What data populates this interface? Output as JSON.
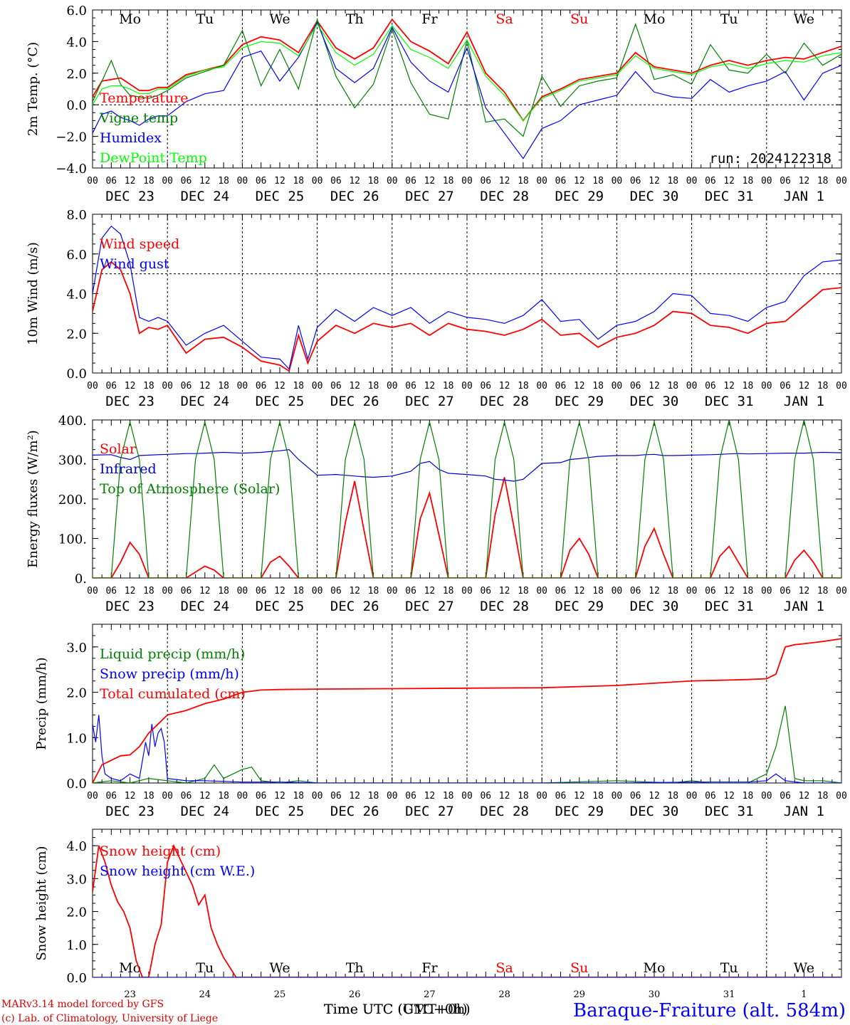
{
  "colors": {
    "red": "#ff0000",
    "darkred": "#e00000",
    "blue": "#0000ff",
    "darkblue": "#0000c8",
    "green": "#008000",
    "lime": "#00ff00",
    "black": "#000000",
    "sat": "#ff0000"
  },
  "x_ticks": [
    "00",
    "06",
    "12",
    "18",
    "00",
    "06",
    "12",
    "18",
    "00",
    "06",
    "12",
    "18",
    "00",
    "06",
    "12",
    "18",
    "00",
    "06",
    "12",
    "18",
    "00",
    "06",
    "12",
    "18",
    "00",
    "06",
    "12",
    "18",
    "00",
    "06",
    "12",
    "18",
    "00",
    "06",
    "12",
    "18",
    "00",
    "06",
    "12",
    "18",
    "00"
  ],
  "date_labels": [
    "DEC 23",
    "DEC 24",
    "DEC 25",
    "DEC 26",
    "DEC 27",
    "DEC 28",
    "DEC 29",
    "DEC 30",
    "DEC 31",
    "JAN  1"
  ],
  "weekdays": [
    "Mo",
    "Tu",
    "We",
    "Th",
    "Fr",
    "Sa",
    "Su",
    "Mo",
    "Tu",
    "We"
  ],
  "weekday_colors": [
    "#000",
    "#000",
    "#000",
    "#000",
    "#000",
    "#ff0000",
    "#ff0000",
    "#000",
    "#000",
    "#000"
  ],
  "day_numbers": [
    "23",
    "24",
    "25",
    "26",
    "27",
    "28",
    "29",
    "30",
    "31",
    "1"
  ],
  "run_label": "run: 2024122318",
  "footer": {
    "credit1": "MARv3.14 model forced by GFS",
    "credit2": "(c) Lab. of Climatology, University of Liege",
    "xlabel_a": "Time UTC (UTC+0h)",
    "xlabel_b": "Time UTC (GMT+0h)",
    "station": "Baraque-Fraiture (alt. 584m)"
  },
  "chart_data": [
    {
      "type": "line",
      "ylabel": "2m Temp. (°C)",
      "ylim": [
        -4,
        6
      ],
      "yticks": [
        "6.0",
        "4.0",
        "2.0",
        "0.0",
        "−2.0",
        "−4.0"
      ],
      "ref_line": 0,
      "x_hours": [
        0,
        3,
        6,
        9,
        12,
        15,
        18,
        21,
        24,
        30,
        36,
        42,
        48,
        54,
        60,
        66,
        72,
        78,
        84,
        90,
        96,
        102,
        108,
        114,
        120,
        126,
        132,
        138,
        144,
        150,
        156,
        162,
        168,
        174,
        180,
        186,
        192,
        198,
        204,
        210,
        216,
        222,
        228,
        234,
        240
      ],
      "series": [
        {
          "name": "Temperature",
          "color": "#ff0000",
          "values": [
            0.5,
            1.5,
            1.6,
            1.7,
            1.3,
            0.9,
            0.9,
            1.1,
            1.1,
            1.9,
            2.2,
            2.5,
            3.8,
            4.3,
            4.1,
            3.3,
            5.3,
            3.6,
            2.9,
            3.6,
            5.4,
            4.0,
            3.4,
            2.6,
            4.6,
            2.0,
            0.8,
            -1.0,
            0.5,
            1.0,
            1.6,
            1.8,
            2.0,
            3.3,
            2.4,
            2.2,
            2.0,
            2.5,
            2.8,
            2.5,
            2.8,
            3.0,
            2.9,
            3.3,
            3.7
          ]
        },
        {
          "name": "Vigne temp",
          "color": "#008000",
          "values": [
            0.2,
            1.5,
            2.8,
            1.3,
            0.6,
            0.5,
            0.4,
            0.6,
            0.9,
            1.7,
            2.1,
            2.5,
            4.7,
            1.2,
            3.5,
            1.0,
            5.4,
            1.8,
            -0.2,
            1.3,
            4.8,
            1.4,
            -0.6,
            -0.9,
            4.1,
            -1.1,
            -0.9,
            -2.0,
            1.8,
            -0.1,
            1.2,
            1.5,
            1.7,
            5.1,
            1.6,
            1.9,
            1.3,
            3.8,
            2.2,
            2.0,
            3.2,
            2.0,
            3.9,
            2.5,
            3.2
          ]
        },
        {
          "name": "Humidex",
          "color": "#0000ff",
          "values": [
            -1.8,
            -0.6,
            -0.4,
            -0.8,
            -1.0,
            -1.3,
            -0.9,
            -0.7,
            -0.7,
            0.2,
            0.7,
            0.9,
            3.0,
            3.4,
            1.5,
            3.0,
            5.2,
            2.3,
            1.4,
            2.3,
            4.9,
            2.7,
            1.5,
            0.8,
            3.6,
            -0.2,
            -1.8,
            -3.4,
            -1.5,
            -1.0,
            0.0,
            0.3,
            0.6,
            2.1,
            0.8,
            0.5,
            0.4,
            1.6,
            0.8,
            1.2,
            1.5,
            2.1,
            0.3,
            2.0,
            2.5
          ]
        },
        {
          "name": "DewPoint Temp",
          "color": "#00ff00",
          "values": [
            0.0,
            1.0,
            1.2,
            1.2,
            1.0,
            0.7,
            0.7,
            1.0,
            1.0,
            1.8,
            2.2,
            2.4,
            3.6,
            4.0,
            3.9,
            3.1,
            5.1,
            3.3,
            2.5,
            3.2,
            5.0,
            3.5,
            3.0,
            2.3,
            4.1,
            1.8,
            0.6,
            -1.0,
            0.4,
            0.9,
            1.5,
            1.7,
            1.9,
            3.1,
            2.3,
            2.1,
            1.9,
            2.4,
            2.6,
            2.3,
            2.6,
            2.8,
            2.7,
            3.1,
            3.3
          ]
        }
      ]
    },
    {
      "type": "line",
      "ylabel": "10m Wind (m/s)",
      "ylim": [
        0,
        8
      ],
      "yticks": [
        "8.0",
        "6.0",
        "4.0",
        "2.0",
        "0.0"
      ],
      "ref_line": 5,
      "x_hours": [
        0,
        3,
        6,
        9,
        12,
        15,
        18,
        21,
        24,
        30,
        36,
        42,
        48,
        54,
        60,
        63,
        66,
        69,
        72,
        78,
        84,
        90,
        96,
        102,
        108,
        114,
        120,
        126,
        132,
        138,
        144,
        150,
        156,
        162,
        168,
        174,
        180,
        186,
        192,
        198,
        204,
        210,
        216,
        222,
        228,
        234,
        240
      ],
      "series": [
        {
          "name": "Wind speed",
          "color": "#ff0000",
          "values": [
            3.1,
            5.2,
            5.6,
            5.2,
            4.0,
            2.0,
            2.3,
            2.2,
            2.4,
            1.0,
            1.7,
            1.8,
            1.3,
            0.6,
            0.4,
            0.1,
            1.9,
            0.5,
            1.6,
            2.4,
            2.0,
            2.5,
            2.3,
            2.5,
            1.9,
            2.5,
            2.2,
            2.1,
            1.9,
            2.2,
            2.7,
            1.9,
            2.0,
            1.3,
            1.8,
            2.0,
            2.4,
            3.1,
            3.0,
            2.4,
            2.3,
            2.0,
            2.5,
            2.6,
            3.4,
            4.2,
            4.3
          ]
        },
        {
          "name": "Wind gust",
          "color": "#0000ff",
          "values": [
            4.0,
            6.8,
            7.4,
            7.0,
            5.5,
            2.8,
            2.6,
            2.8,
            2.6,
            1.4,
            2.0,
            2.4,
            1.6,
            0.8,
            0.7,
            0.2,
            2.4,
            0.7,
            2.3,
            3.2,
            2.6,
            3.3,
            2.9,
            3.3,
            2.5,
            3.1,
            2.8,
            2.7,
            2.5,
            2.9,
            3.7,
            2.6,
            2.7,
            1.7,
            2.4,
            2.6,
            3.1,
            4.0,
            3.9,
            3.0,
            2.9,
            2.6,
            3.3,
            3.6,
            4.9,
            5.6,
            5.7
          ]
        }
      ]
    },
    {
      "type": "line",
      "ylabel": "Energy fluxes (W/m²)",
      "ylim": [
        0,
        400
      ],
      "yticks": [
        "400.",
        "300.",
        "200.",
        "100.",
        "0."
      ],
      "x_hours": [
        0,
        6,
        9,
        12,
        15,
        18,
        24,
        30,
        33,
        36,
        39,
        42,
        48,
        54,
        57,
        60,
        63,
        66,
        72,
        78,
        81,
        84,
        87,
        90,
        96,
        102,
        105,
        108,
        111,
        114,
        120,
        126,
        129,
        132,
        135,
        138,
        144,
        150,
        153,
        156,
        159,
        162,
        168,
        174,
        177,
        180,
        183,
        186,
        192,
        198,
        201,
        204,
        207,
        210,
        216,
        222,
        225,
        228,
        231,
        234,
        240
      ],
      "series": [
        {
          "name": "Solar",
          "color": "#ff0000",
          "values": [
            0,
            0,
            40,
            90,
            60,
            0,
            0,
            0,
            15,
            30,
            20,
            0,
            0,
            0,
            40,
            55,
            30,
            0,
            0,
            0,
            140,
            245,
            120,
            0,
            0,
            0,
            150,
            215,
            110,
            0,
            0,
            0,
            160,
            255,
            130,
            0,
            0,
            0,
            70,
            100,
            60,
            0,
            0,
            0,
            80,
            125,
            60,
            0,
            0,
            0,
            55,
            80,
            40,
            0,
            0,
            0,
            45,
            70,
            40,
            0,
            0
          ]
        },
        {
          "name": "Infrared",
          "color": "#0000c8",
          "values": [
            311,
            312,
            305,
            300,
            310,
            311,
            313,
            315,
            315,
            316,
            317,
            318,
            316,
            318,
            320,
            322,
            325,
            300,
            260,
            262,
            260,
            258,
            256,
            255,
            258,
            270,
            290,
            295,
            275,
            265,
            262,
            258,
            250,
            248,
            245,
            250,
            290,
            292,
            300,
            302,
            305,
            308,
            310,
            310,
            312,
            313,
            310,
            310,
            311,
            312,
            313,
            314,
            315,
            314,
            315,
            316,
            316,
            316,
            317,
            318,
            317
          ]
        },
        {
          "name": "Top of Atmosphere (Solar)",
          "color": "#008000",
          "values": [
            0,
            0,
            300,
            395,
            300,
            0,
            0,
            0,
            300,
            395,
            300,
            0,
            0,
            0,
            300,
            395,
            300,
            0,
            0,
            0,
            300,
            395,
            300,
            0,
            0,
            0,
            300,
            395,
            300,
            0,
            0,
            0,
            300,
            395,
            300,
            0,
            0,
            0,
            300,
            395,
            300,
            0,
            0,
            0,
            300,
            395,
            300,
            0,
            0,
            0,
            300,
            400,
            300,
            0,
            0,
            0,
            300,
            400,
            300,
            0,
            0
          ]
        }
      ]
    },
    {
      "type": "line",
      "ylabel": "Precip (mm/h)",
      "ylim": [
        0,
        3.5
      ],
      "yticks": [
        "3.0",
        "2.0",
        "1.0",
        "0.0"
      ],
      "series": [
        {
          "name": "Liquid precip (mm/h)",
          "color": "#008000",
          "x": [
            0,
            6,
            12,
            18,
            24,
            30,
            36,
            39,
            42,
            48,
            51,
            54,
            60,
            66,
            72,
            96,
            120,
            144,
            168,
            186,
            192,
            198,
            204,
            210,
            216,
            219,
            222,
            225,
            228,
            234,
            240
          ],
          "values": [
            0,
            0.05,
            0,
            0.1,
            0.05,
            0,
            0.1,
            0.4,
            0.1,
            0.3,
            0.35,
            0.05,
            0,
            0.05,
            0,
            0,
            0,
            0,
            0.05,
            0,
            0.05,
            0,
            0,
            0,
            0.2,
            0.8,
            1.7,
            0.1,
            0.05,
            0.05,
            0
          ]
        },
        {
          "name": "Snow precip (mm/h)",
          "color": "#0000ff",
          "x": [
            0,
            1,
            2,
            3,
            4,
            6,
            9,
            12,
            15,
            17,
            18,
            19,
            20,
            21,
            22,
            23,
            24,
            30,
            36,
            48,
            60,
            72,
            96,
            120,
            144,
            168,
            192,
            210,
            216,
            219,
            222,
            228,
            240
          ],
          "values": [
            1.3,
            0.9,
            1.5,
            0.6,
            0.2,
            0.1,
            0.05,
            0.2,
            0.1,
            0.9,
            0.6,
            1.3,
            0.8,
            1.1,
            1.2,
            0.9,
            0.1,
            0.05,
            0.05,
            0.02,
            0.02,
            0,
            0,
            0,
            0,
            0,
            0.02,
            0.02,
            0.05,
            0.2,
            0.05,
            0,
            0
          ]
        },
        {
          "name": "Total cumulated (cm)",
          "color": "#ff0000",
          "x": [
            0,
            3,
            6,
            9,
            12,
            15,
            18,
            21,
            24,
            30,
            36,
            42,
            48,
            54,
            60,
            72,
            96,
            120,
            144,
            168,
            192,
            204,
            210,
            216,
            219,
            222,
            225,
            228,
            234,
            240
          ],
          "values": [
            0,
            0.4,
            0.5,
            0.6,
            0.62,
            0.8,
            1.1,
            1.3,
            1.5,
            1.6,
            1.75,
            1.85,
            2.0,
            2.05,
            2.06,
            2.07,
            2.08,
            2.09,
            2.1,
            2.15,
            2.25,
            2.27,
            2.28,
            2.3,
            2.4,
            3.0,
            3.05,
            3.07,
            3.12,
            3.18
          ]
        }
      ]
    },
    {
      "type": "line",
      "ylabel": "Snow height (cm)",
      "ylim": [
        0,
        4.5
      ],
      "yticks": [
        "4.0",
        "3.0",
        "2.0",
        "1.0",
        "0.0"
      ],
      "series": [
        {
          "name": "Snow height (cm)",
          "color": "#ff0000",
          "x": [
            0,
            2,
            4,
            6,
            8,
            10,
            12,
            14,
            16,
            18,
            20,
            22,
            24,
            26,
            28,
            30,
            32,
            34,
            36,
            38,
            40,
            42,
            44,
            46,
            48,
            72,
            120,
            168,
            216,
            240
          ],
          "values": [
            2.6,
            4.0,
            3.5,
            2.8,
            2.3,
            2.0,
            1.5,
            0.5,
            0.0,
            0.0,
            1.0,
            1.6,
            3.5,
            4.0,
            3.6,
            3.2,
            2.8,
            2.2,
            2.5,
            1.5,
            1.0,
            0.6,
            0.3,
            0.0,
            0.0,
            0.0,
            0.0,
            0.0,
            0.0,
            0.0
          ]
        },
        {
          "name": "Snow height (cm W.E.)",
          "color": "#0000ff",
          "x": [
            0,
            240
          ],
          "values": [
            0,
            0
          ]
        }
      ]
    }
  ]
}
